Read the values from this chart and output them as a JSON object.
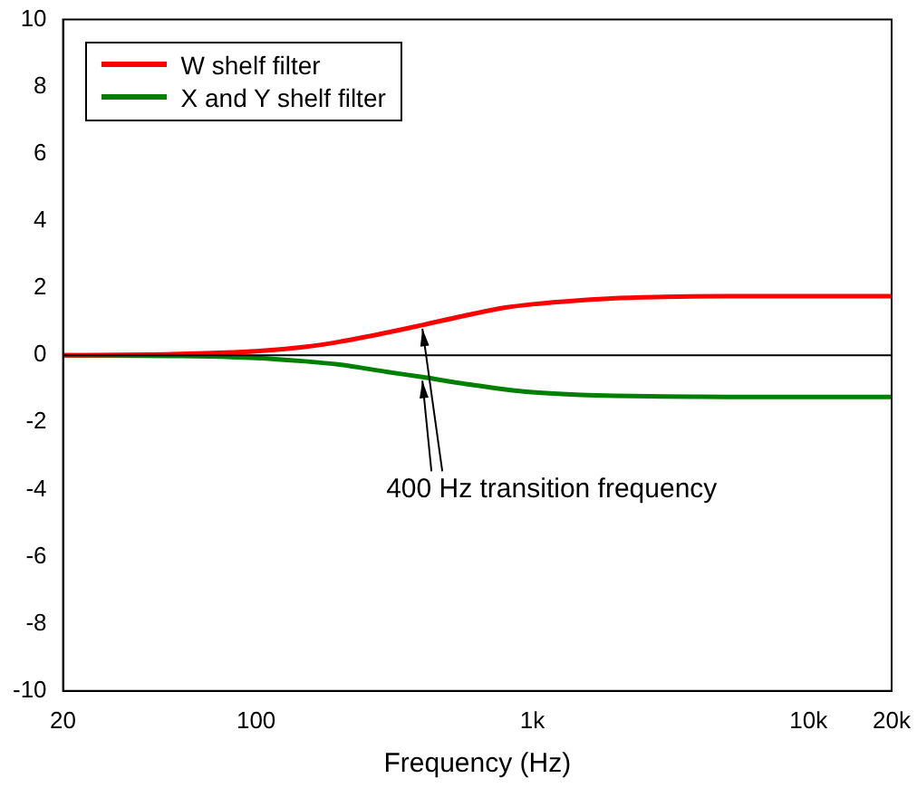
{
  "chart_data": {
    "type": "line",
    "xlabel": "Frequency (Hz)",
    "x": [
      20,
      50,
      100,
      150,
      200,
      300,
      400,
      600,
      800,
      1000,
      1500,
      2000,
      3000,
      5000,
      10000,
      20000
    ],
    "series": [
      {
        "name": "W shelf filter",
        "color": "#ff0000",
        "values": [
          0,
          0.03,
          0.12,
          0.25,
          0.4,
          0.68,
          0.9,
          1.22,
          1.42,
          1.52,
          1.64,
          1.7,
          1.74,
          1.76,
          1.76,
          1.76
        ]
      },
      {
        "name": "X and Y shelf filter",
        "color": "#008000",
        "values": [
          0,
          -0.02,
          -0.08,
          -0.18,
          -0.28,
          -0.5,
          -0.65,
          -0.88,
          -1.02,
          -1.1,
          -1.18,
          -1.21,
          -1.23,
          -1.24,
          -1.24,
          -1.24
        ]
      }
    ],
    "log": "x",
    "xlim": [
      20,
      20000
    ],
    "xticks": [
      20,
      100,
      {
        "value": 1000,
        "label": "1k"
      },
      {
        "value": 10000,
        "label": "10k"
      },
      {
        "value": 20000,
        "label": "20k"
      }
    ],
    "ylim": [
      -10,
      10
    ],
    "yticks": [
      -10,
      -8,
      -6,
      -4,
      -2,
      0,
      2,
      4,
      6,
      8,
      10
    ],
    "ref_lines": [
      {
        "axis": "y",
        "value": 0,
        "color": "#000000"
      }
    ],
    "annotations": [
      {
        "text": "400 Hz transition frequency",
        "x": 400,
        "y": 0.9
      }
    ],
    "legend": "top left",
    "grid": false,
    "marker": "none",
    "line_style": "solid"
  }
}
